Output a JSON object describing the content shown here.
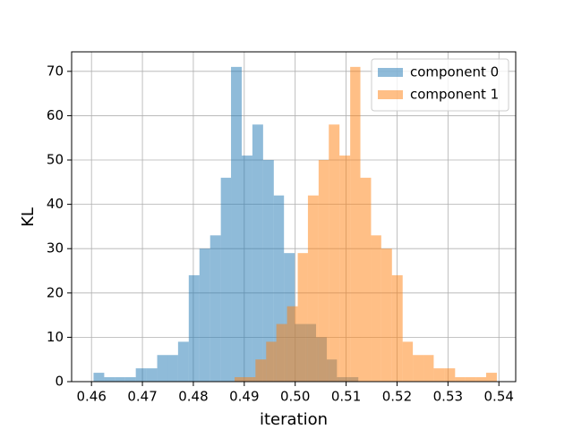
{
  "chart_data": {
    "type": "histogram",
    "xlabel": "iteration",
    "ylabel": "KL",
    "series": [
      {
        "name": "component 0",
        "color": "#1f77b4",
        "alpha": 0.5,
        "bins": [
          0.4604,
          0.4625,
          0.4646,
          0.4666,
          0.4687,
          0.4708,
          0.4729,
          0.475,
          0.477,
          0.4791,
          0.4812,
          0.4833,
          0.4854,
          0.4874,
          0.4895,
          0.4916,
          0.4937,
          0.4958,
          0.4978,
          0.4999,
          0.502,
          0.5041,
          0.5062,
          0.5082,
          0.5103,
          0.5124
        ],
        "values": [
          2,
          1,
          1,
          1,
          3,
          3,
          6,
          6,
          9,
          24,
          30,
          33,
          46,
          71,
          51,
          58,
          50,
          42,
          29,
          13,
          13,
          10,
          5,
          1,
          1
        ]
      },
      {
        "name": "component 1",
        "color": "#ff7f0e",
        "alpha": 0.5,
        "bins": [
          0.4881,
          0.4902,
          0.4922,
          0.4943,
          0.4963,
          0.4984,
          0.5005,
          0.5025,
          0.5046,
          0.5066,
          0.5087,
          0.5108,
          0.5128,
          0.5149,
          0.5169,
          0.519,
          0.5211,
          0.5231,
          0.5252,
          0.5272,
          0.5293,
          0.5314,
          0.5334,
          0.5355,
          0.5375,
          0.5396
        ],
        "values": [
          1,
          1,
          5,
          9,
          13,
          17,
          29,
          42,
          50,
          58,
          51,
          71,
          46,
          33,
          30,
          24,
          9,
          6,
          6,
          3,
          3,
          1,
          1,
          1,
          2
        ]
      }
    ],
    "xlim": [
      0.4561,
      0.5433
    ],
    "ylim": [
      0,
      74.4
    ],
    "xticks": [
      0.46,
      0.47,
      0.48,
      0.49,
      {
        "value": 0.5,
        "label": "0.50"
      },
      0.51,
      0.52,
      0.53,
      0.54
    ],
    "yticks": [
      0,
      10,
      20,
      30,
      40,
      50,
      60,
      70
    ],
    "grid": true,
    "legend": "upper right"
  }
}
